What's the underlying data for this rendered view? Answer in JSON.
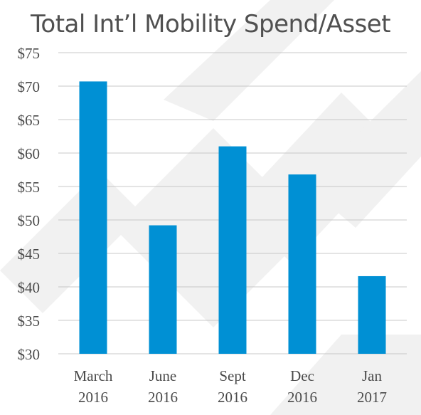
{
  "colors": {
    "bar": "#0090d4",
    "grid": "#c8c8c8",
    "text": "#4a4a4a",
    "title": "#505050"
  },
  "chart_data": {
    "type": "bar",
    "title": "Total Int’l Mobility Spend/Asset",
    "xlabel": "",
    "ylabel": "",
    "categories": [
      [
        "March",
        "2016"
      ],
      [
        "June",
        "2016"
      ],
      [
        "Sept",
        "2016"
      ],
      [
        "Dec",
        "2016"
      ],
      [
        "Jan",
        "2017"
      ]
    ],
    "values": [
      70.7,
      49.2,
      61.0,
      56.8,
      41.6
    ],
    "ylim": [
      30,
      75
    ],
    "yticks": [
      30,
      35,
      40,
      45,
      50,
      55,
      60,
      65,
      70,
      75
    ],
    "ytick_labels": [
      "$30",
      "$35",
      "$40",
      "$45",
      "$50",
      "$55",
      "$60",
      "$65",
      "$70",
      "$75"
    ],
    "grid": true,
    "legend": "none"
  }
}
